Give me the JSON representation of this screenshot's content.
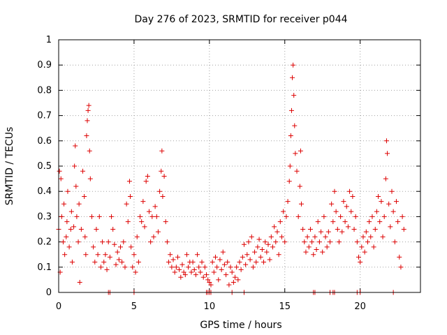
{
  "chart_data": {
    "type": "scatter",
    "title": "Day 276 of 2023, SRMTID for receiver p044",
    "xlabel": "GPS time / hours",
    "ylabel": "SRMTID / TECUs",
    "xlim": [
      0,
      24
    ],
    "ylim": [
      0,
      1
    ],
    "xticks": [
      0,
      5,
      10,
      15,
      20
    ],
    "xtick_labels": [
      "0",
      "5",
      "10",
      "15",
      "20"
    ],
    "yticks": [
      0,
      0.1,
      0.2,
      0.3,
      0.4,
      0.5,
      0.6,
      0.7,
      0.8,
      0.9,
      1
    ],
    "ytick_labels": [
      "0",
      "0.1",
      "0.2",
      "0.3",
      "0.4",
      "0.5",
      "0.6",
      "0.7",
      "0.8",
      "0.9",
      "1"
    ],
    "grid": true,
    "marker": "+",
    "color": "#dd0000",
    "series": [
      {
        "name": "SRMTID",
        "points": [
          [
            0.0,
            0.25
          ],
          [
            0.05,
            0.48
          ],
          [
            0.1,
            0.08
          ],
          [
            0.15,
            0.45
          ],
          [
            0.2,
            0.3
          ],
          [
            0.3,
            0.2
          ],
          [
            0.35,
            0.35
          ],
          [
            0.4,
            0.15
          ],
          [
            0.5,
            0.22
          ],
          [
            0.55,
            0.28
          ],
          [
            0.6,
            0.4
          ],
          [
            0.7,
            0.18
          ],
          [
            0.8,
            0.25
          ],
          [
            0.85,
            0.32
          ],
          [
            0.9,
            0.12
          ],
          [
            1.0,
            0.26
          ],
          [
            1.05,
            0.5
          ],
          [
            1.1,
            0.58
          ],
          [
            1.15,
            0.42
          ],
          [
            1.2,
            0.3
          ],
          [
            1.3,
            0.2
          ],
          [
            1.35,
            0.35
          ],
          [
            1.4,
            0.04
          ],
          [
            1.5,
            0.25
          ],
          [
            1.6,
            0.48
          ],
          [
            1.7,
            0.38
          ],
          [
            1.75,
            0.22
          ],
          [
            1.8,
            0.15
          ],
          [
            1.85,
            0.62
          ],
          [
            1.9,
            0.68
          ],
          [
            1.95,
            0.72
          ],
          [
            2.0,
            0.74
          ],
          [
            2.05,
            0.56
          ],
          [
            2.1,
            0.45
          ],
          [
            2.2,
            0.3
          ],
          [
            2.3,
            0.18
          ],
          [
            2.4,
            0.12
          ],
          [
            2.5,
            0.25
          ],
          [
            2.6,
            0.15
          ],
          [
            2.7,
            0.3
          ],
          [
            2.8,
            0.1
          ],
          [
            2.9,
            0.2
          ],
          [
            3.0,
            0.12
          ],
          [
            3.1,
            0.15
          ],
          [
            3.2,
            0.09
          ],
          [
            3.3,
            0.2
          ],
          [
            3.4,
            0.14
          ],
          [
            3.5,
            0.3
          ],
          [
            3.6,
            0.25
          ],
          [
            3.7,
            0.19
          ],
          [
            3.8,
            0.11
          ],
          [
            3.9,
            0.16
          ],
          [
            4.0,
            0.13
          ],
          [
            4.1,
            0.18
          ],
          [
            4.2,
            0.12
          ],
          [
            4.3,
            0.2
          ],
          [
            4.4,
            0.1
          ],
          [
            4.5,
            0.35
          ],
          [
            4.6,
            0.28
          ],
          [
            4.7,
            0.44
          ],
          [
            4.75,
            0.38
          ],
          [
            4.8,
            0.18
          ],
          [
            4.9,
            0.1
          ],
          [
            5.0,
            0.15
          ],
          [
            5.1,
            0.08
          ],
          [
            5.2,
            0.22
          ],
          [
            5.3,
            0.12
          ],
          [
            5.4,
            0.3
          ],
          [
            5.5,
            0.28
          ],
          [
            5.6,
            0.36
          ],
          [
            5.7,
            0.26
          ],
          [
            5.8,
            0.44
          ],
          [
            5.9,
            0.46
          ],
          [
            6.0,
            0.32
          ],
          [
            6.1,
            0.2
          ],
          [
            6.2,
            0.3
          ],
          [
            6.3,
            0.22
          ],
          [
            6.4,
            0.34
          ],
          [
            6.5,
            0.3
          ],
          [
            6.6,
            0.24
          ],
          [
            6.7,
            0.4
          ],
          [
            6.8,
            0.48
          ],
          [
            6.85,
            0.56
          ],
          [
            6.9,
            0.38
          ],
          [
            7.0,
            0.46
          ],
          [
            7.1,
            0.28
          ],
          [
            7.2,
            0.2
          ],
          [
            7.3,
            0.12
          ],
          [
            7.4,
            0.15
          ],
          [
            7.5,
            0.1
          ],
          [
            7.6,
            0.13
          ],
          [
            7.7,
            0.08
          ],
          [
            7.8,
            0.1
          ],
          [
            7.9,
            0.14
          ],
          [
            8.0,
            0.09
          ],
          [
            8.1,
            0.06
          ],
          [
            8.2,
            0.11
          ],
          [
            8.3,
            0.08
          ],
          [
            8.4,
            0.07
          ],
          [
            8.5,
            0.15
          ],
          [
            8.6,
            0.1
          ],
          [
            8.7,
            0.12
          ],
          [
            8.8,
            0.08
          ],
          [
            8.9,
            0.12
          ],
          [
            9.0,
            0.09
          ],
          [
            9.1,
            0.07
          ],
          [
            9.2,
            0.15
          ],
          [
            9.3,
            0.1
          ],
          [
            9.4,
            0.08
          ],
          [
            9.5,
            0.12
          ],
          [
            9.6,
            0.06
          ],
          [
            9.7,
            0.1
          ],
          [
            9.8,
            0.07
          ],
          [
            9.9,
            0.05
          ],
          [
            10.0,
            0.04
          ],
          [
            10.1,
            0.03
          ],
          [
            10.2,
            0.12
          ],
          [
            10.3,
            0.08
          ],
          [
            10.4,
            0.14
          ],
          [
            10.5,
            0.1
          ],
          [
            10.6,
            0.05
          ],
          [
            10.7,
            0.13
          ],
          [
            10.8,
            0.09
          ],
          [
            10.9,
            0.16
          ],
          [
            11.0,
            0.11
          ],
          [
            11.1,
            0.07
          ],
          [
            11.2,
            0.12
          ],
          [
            11.3,
            0.03
          ],
          [
            11.4,
            0.1
          ],
          [
            11.5,
            0.08
          ],
          [
            11.6,
            0.04
          ],
          [
            11.7,
            0.06
          ],
          [
            11.8,
            0.1
          ],
          [
            11.9,
            0.05
          ],
          [
            12.0,
            0.12
          ],
          [
            12.1,
            0.09
          ],
          [
            12.2,
            0.14
          ],
          [
            12.3,
            0.19
          ],
          [
            12.4,
            0.11
          ],
          [
            12.5,
            0.15
          ],
          [
            12.6,
            0.2
          ],
          [
            12.7,
            0.13
          ],
          [
            12.8,
            0.22
          ],
          [
            12.9,
            0.1
          ],
          [
            13.0,
            0.16
          ],
          [
            13.1,
            0.12
          ],
          [
            13.2,
            0.18
          ],
          [
            13.3,
            0.21
          ],
          [
            13.4,
            0.14
          ],
          [
            13.5,
            0.17
          ],
          [
            13.6,
            0.12
          ],
          [
            13.7,
            0.2
          ],
          [
            13.8,
            0.16
          ],
          [
            13.9,
            0.19
          ],
          [
            14.0,
            0.13
          ],
          [
            14.1,
            0.22
          ],
          [
            14.2,
            0.18
          ],
          [
            14.3,
            0.26
          ],
          [
            14.4,
            0.2
          ],
          [
            14.5,
            0.24
          ],
          [
            14.6,
            0.15
          ],
          [
            14.7,
            0.28
          ],
          [
            14.8,
            0.22
          ],
          [
            14.9,
            0.32
          ],
          [
            15.0,
            0.2
          ],
          [
            15.1,
            0.3
          ],
          [
            15.2,
            0.36
          ],
          [
            15.3,
            0.44
          ],
          [
            15.35,
            0.5
          ],
          [
            15.4,
            0.62
          ],
          [
            15.45,
            0.72
          ],
          [
            15.5,
            0.85
          ],
          [
            15.55,
            0.9
          ],
          [
            15.6,
            0.78
          ],
          [
            15.65,
            0.66
          ],
          [
            15.7,
            0.55
          ],
          [
            15.8,
            0.48
          ],
          [
            15.9,
            0.3
          ],
          [
            16.0,
            0.42
          ],
          [
            16.05,
            0.56
          ],
          [
            16.1,
            0.35
          ],
          [
            16.2,
            0.25
          ],
          [
            16.3,
            0.2
          ],
          [
            16.4,
            0.16
          ],
          [
            16.5,
            0.22
          ],
          [
            16.6,
            0.18
          ],
          [
            16.7,
            0.25
          ],
          [
            16.8,
            0.2
          ],
          [
            16.9,
            0.15
          ],
          [
            17.0,
            0.22
          ],
          [
            17.1,
            0.17
          ],
          [
            17.2,
            0.28
          ],
          [
            17.3,
            0.2
          ],
          [
            17.4,
            0.24
          ],
          [
            17.5,
            0.16
          ],
          [
            17.6,
            0.3
          ],
          [
            17.7,
            0.22
          ],
          [
            17.8,
            0.18
          ],
          [
            17.9,
            0.24
          ],
          [
            18.0,
            0.2
          ],
          [
            18.1,
            0.35
          ],
          [
            18.2,
            0.28
          ],
          [
            18.3,
            0.4
          ],
          [
            18.4,
            0.32
          ],
          [
            18.5,
            0.25
          ],
          [
            18.6,
            0.2
          ],
          [
            18.7,
            0.3
          ],
          [
            18.8,
            0.24
          ],
          [
            18.9,
            0.36
          ],
          [
            19.0,
            0.28
          ],
          [
            19.1,
            0.34
          ],
          [
            19.2,
            0.26
          ],
          [
            19.3,
            0.4
          ],
          [
            19.4,
            0.32
          ],
          [
            19.5,
            0.38
          ],
          [
            19.6,
            0.25
          ],
          [
            19.7,
            0.3
          ],
          [
            19.8,
            0.2
          ],
          [
            19.9,
            0.14
          ],
          [
            20.0,
            0.12
          ],
          [
            20.1,
            0.18
          ],
          [
            20.2,
            0.22
          ],
          [
            20.3,
            0.16
          ],
          [
            20.4,
            0.24
          ],
          [
            20.5,
            0.2
          ],
          [
            20.6,
            0.28
          ],
          [
            20.7,
            0.22
          ],
          [
            20.8,
            0.3
          ],
          [
            20.9,
            0.18
          ],
          [
            21.0,
            0.25
          ],
          [
            21.1,
            0.32
          ],
          [
            21.2,
            0.38
          ],
          [
            21.3,
            0.28
          ],
          [
            21.4,
            0.36
          ],
          [
            21.5,
            0.22
          ],
          [
            21.6,
            0.3
          ],
          [
            21.7,
            0.45
          ],
          [
            21.75,
            0.6
          ],
          [
            21.8,
            0.55
          ],
          [
            21.9,
            0.35
          ],
          [
            22.0,
            0.26
          ],
          [
            22.1,
            0.4
          ],
          [
            22.2,
            0.32
          ],
          [
            22.3,
            0.2
          ],
          [
            22.4,
            0.36
          ],
          [
            22.5,
            0.28
          ],
          [
            22.6,
            0.14
          ],
          [
            22.7,
            0.1
          ],
          [
            22.8,
            0.3
          ],
          [
            22.9,
            0.25
          ]
        ]
      }
    ],
    "zero_markers_x": [
      3.3,
      3.4,
      5.0,
      9.8,
      9.9,
      10.0,
      10.1,
      11.5,
      12.3,
      16.9,
      17.0,
      18.0,
      18.2,
      18.3,
      19.8,
      20.0,
      22.2
    ]
  }
}
